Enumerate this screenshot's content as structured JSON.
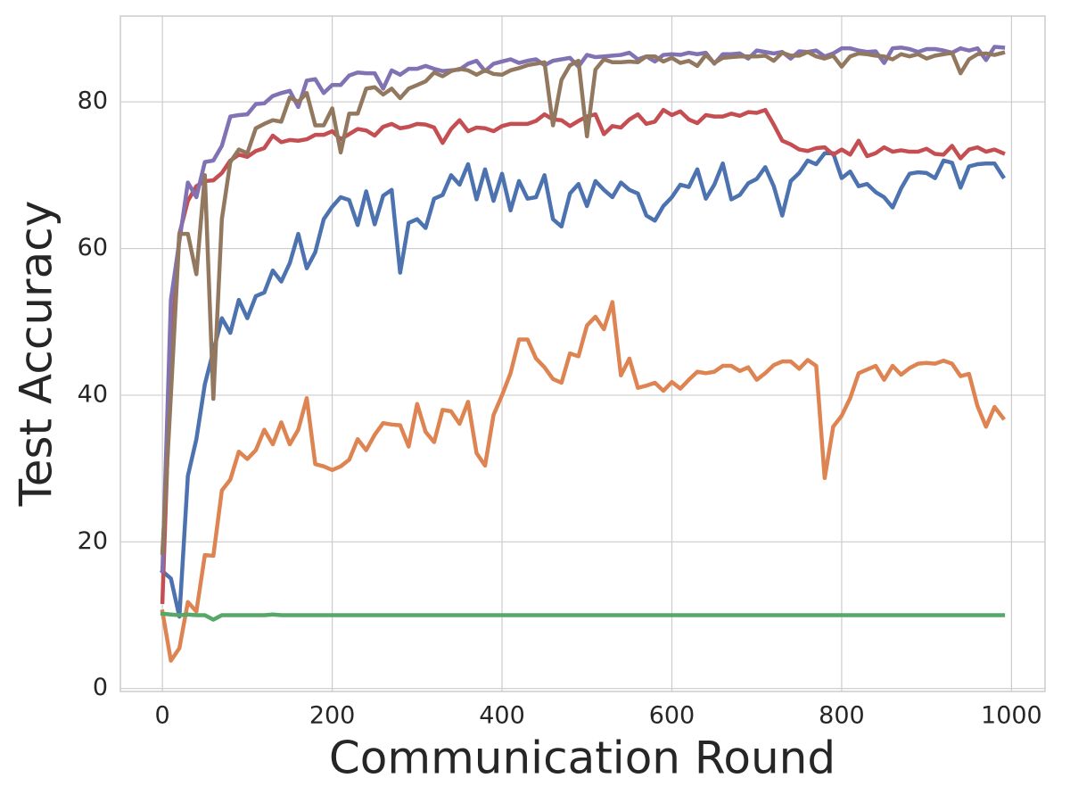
{
  "chart_data": {
    "type": "line",
    "xlabel": "Communication Round",
    "ylabel": "Test Accuracy",
    "x": [
      0,
      10,
      20,
      30,
      40,
      50,
      60,
      70,
      80,
      90,
      100,
      110,
      120,
      130,
      140,
      150,
      160,
      170,
      180,
      190,
      200,
      210,
      220,
      230,
      240,
      250,
      260,
      270,
      280,
      290,
      300,
      310,
      320,
      330,
      340,
      350,
      360,
      370,
      380,
      390,
      400,
      410,
      420,
      430,
      440,
      450,
      460,
      470,
      480,
      490,
      500,
      510,
      520,
      530,
      540,
      550,
      560,
      570,
      580,
      590,
      600,
      610,
      620,
      630,
      640,
      650,
      660,
      670,
      680,
      690,
      700,
      710,
      720,
      730,
      740,
      750,
      760,
      770,
      780,
      790,
      800,
      810,
      820,
      830,
      840,
      850,
      860,
      870,
      880,
      890,
      900,
      910,
      920,
      930,
      940,
      950,
      960,
      970,
      980,
      990
    ],
    "xlim": [
      -49.5,
      1039.5
    ],
    "ylim": [
      -0.4,
      91.7
    ],
    "xticks": [
      0,
      200,
      400,
      600,
      800,
      1000
    ],
    "yticks": [
      0,
      20,
      40,
      60,
      80
    ],
    "grid": true,
    "series": [
      {
        "color": "#4c72b0",
        "values": [
          16,
          15,
          9.8,
          29,
          34,
          41.5,
          46,
          50.5,
          48.5,
          53,
          50.5,
          53.5,
          54,
          57,
          55.5,
          58,
          62,
          57.3,
          59.5,
          64,
          65.7,
          67,
          66.6,
          63.2,
          67.8,
          63.3,
          67.2,
          68,
          56.7,
          63.5,
          64,
          62.8,
          66.8,
          67.3,
          70,
          68.7,
          71.5,
          66.7,
          70.8,
          66.5,
          70.2,
          65.2,
          69.2,
          66.8,
          67,
          70,
          64,
          63,
          67.5,
          68.8,
          65.8,
          69.2,
          68,
          67,
          69,
          68,
          67.5,
          64.5,
          63.8,
          65.8,
          67,
          68.7,
          68.4,
          70.8,
          66.8,
          68.7,
          71.6,
          66.7,
          67.3,
          68.9,
          69.5,
          71.1,
          68.5,
          64.5,
          69.2,
          70.3,
          72,
          71.5,
          73,
          73,
          69.6,
          70.5,
          68.5,
          68.8,
          67.7,
          67,
          65.6,
          68.2,
          70.2,
          70.4,
          70.3,
          69.6,
          72,
          71.7,
          68.3,
          71.2,
          71.5,
          71.6,
          71.6,
          69.8
        ]
      },
      {
        "color": "#dd8452",
        "values": [
          10.5,
          3.8,
          5.5,
          11.8,
          10.5,
          18.2,
          18.1,
          27,
          28.5,
          32.3,
          31.3,
          32.5,
          35.3,
          33.3,
          36.3,
          33.3,
          35.3,
          39.6,
          30.6,
          30.3,
          29.8,
          30.3,
          31.2,
          34,
          32.5,
          34.6,
          36.2,
          36,
          35.9,
          33,
          38.8,
          35,
          33.6,
          38,
          37.8,
          36.1,
          39.1,
          32.1,
          30.4,
          37.3,
          40,
          43,
          47.6,
          47.6,
          45,
          43.8,
          42.2,
          41.7,
          45.7,
          45.3,
          49.5,
          50.7,
          49,
          52.7,
          42.7,
          45,
          41,
          41.3,
          41.7,
          40.6,
          41.8,
          40.9,
          42.1,
          43.2,
          43,
          43.2,
          44,
          44,
          43.3,
          43.8,
          42.1,
          43,
          44.1,
          44.6,
          44.6,
          43.6,
          44.8,
          44,
          28.7,
          35.7,
          37.2,
          39.6,
          43,
          43.5,
          44,
          42.1,
          44,
          42.8,
          43.7,
          44.3,
          44.4,
          44.3,
          44.7,
          44.3,
          42.6,
          42.9,
          38.5,
          35.7,
          38.4,
          36.9
        ]
      },
      {
        "color": "#55a868",
        "values": [
          10.2,
          10.1,
          10,
          10.1,
          10,
          10,
          9.4,
          10,
          10,
          10,
          10,
          10,
          10,
          10.1,
          10,
          10,
          10,
          10,
          10,
          10,
          10,
          10,
          10,
          10,
          10,
          10,
          10,
          10,
          10,
          10,
          10,
          10,
          10,
          10,
          10,
          10,
          10,
          10,
          10,
          10,
          10,
          10,
          10,
          10,
          10,
          10,
          10,
          10,
          10,
          10,
          10,
          10,
          10,
          10,
          10,
          10,
          10,
          10,
          10,
          10,
          10,
          10,
          10,
          10,
          10,
          10,
          10,
          10,
          10,
          10,
          10,
          10,
          10,
          10,
          10,
          10,
          10,
          10,
          10,
          10,
          10,
          10,
          10,
          10,
          10,
          10,
          10,
          10,
          10,
          10,
          10,
          10,
          10,
          10,
          10,
          10,
          10,
          10,
          10,
          10
        ]
      },
      {
        "color": "#c44e52",
        "values": [
          11.8,
          45,
          62,
          66.5,
          68.5,
          69.2,
          69.3,
          70.3,
          72,
          72.8,
          72.5,
          73.3,
          73.7,
          75.4,
          74.5,
          74.8,
          74.7,
          74.9,
          75.5,
          75.5,
          76,
          74.9,
          75.6,
          76.3,
          76.1,
          75.4,
          76.6,
          77,
          76.4,
          76.6,
          77,
          76.9,
          76.5,
          74.4,
          76.3,
          77.5,
          76,
          76.5,
          76.4,
          76,
          76.7,
          77,
          77,
          77,
          77.4,
          78.3,
          77.6,
          77.5,
          76.7,
          77.4,
          78,
          78.3,
          75.6,
          76.7,
          76.5,
          77.6,
          78.3,
          77,
          77.3,
          78.9,
          78.2,
          78.7,
          77.6,
          77.1,
          78.2,
          78,
          78,
          78.4,
          78.1,
          78.6,
          78.5,
          78.9,
          76.9,
          74.7,
          74.2,
          73.5,
          73.3,
          73.7,
          73.8,
          72.8,
          73.5,
          72.8,
          74.7,
          72.6,
          73,
          73.8,
          73.2,
          73.4,
          73.2,
          73.2,
          73.6,
          72.9,
          72.8,
          74,
          72.3,
          73.5,
          73.8,
          73.2,
          73.5,
          73
        ]
      },
      {
        "color": "#8172b3",
        "values": [
          16,
          53,
          61,
          69,
          67,
          71.8,
          72,
          74,
          78,
          78.2,
          78.3,
          79.7,
          79.8,
          80.8,
          81.2,
          81.5,
          79.3,
          82.9,
          83.1,
          81.2,
          82.3,
          82.3,
          83.6,
          84,
          83.9,
          83.9,
          81.8,
          84.3,
          83.7,
          84.5,
          84.5,
          84.9,
          84.5,
          84.2,
          84.3,
          84.4,
          85.2,
          85.6,
          84.2,
          85.2,
          85.5,
          85.8,
          85.3,
          85.6,
          85.8,
          85,
          85.6,
          85.8,
          86,
          84.8,
          86.4,
          86.1,
          86.2,
          86.3,
          86.4,
          86.7,
          85.8,
          86.2,
          85.5,
          86.4,
          86.5,
          86.4,
          86.7,
          86.5,
          86.7,
          85.2,
          86.5,
          86.5,
          86.6,
          85.9,
          87,
          86.8,
          86.6,
          86.8,
          85.9,
          86.9,
          86.8,
          87,
          86.2,
          86.6,
          87.3,
          87.3,
          87,
          86.8,
          86.9,
          85.3,
          87.3,
          87.4,
          87.2,
          86.8,
          87.2,
          87.2,
          87,
          86.7,
          87.3,
          87,
          87.3,
          85.7,
          87.5,
          87.4
        ]
      },
      {
        "color": "#937860",
        "values": [
          18.5,
          40,
          62,
          62,
          56.5,
          70,
          39.5,
          64,
          71.8,
          73.5,
          73,
          76.4,
          77,
          77.5,
          77.3,
          80.6,
          80,
          81.2,
          76.8,
          76.8,
          79.1,
          73.1,
          78.4,
          78.4,
          81.8,
          82,
          81,
          81.8,
          80.5,
          81.8,
          82.3,
          82.8,
          84,
          83.5,
          84.2,
          84.5,
          84.3,
          83.7,
          84.3,
          83.8,
          83.7,
          84.3,
          84.6,
          85,
          85.2,
          85.4,
          76.8,
          83,
          85,
          85.6,
          75.3,
          84.4,
          85.8,
          85.4,
          85.4,
          85.5,
          85.4,
          86.2,
          86.2,
          85.5,
          86,
          85.3,
          85.6,
          84.9,
          86.4,
          85.3,
          86,
          86.1,
          86.2,
          86.2,
          86.2,
          86.3,
          85.6,
          86.7,
          86.3,
          86.3,
          86.8,
          86.2,
          85.9,
          86.3,
          84.8,
          86.2,
          86.6,
          86.5,
          86.3,
          86.2,
          85.8,
          86.5,
          86.2,
          86.5,
          85.9,
          86.3,
          86.5,
          86.7,
          83.9,
          85.8,
          86.5,
          86.6,
          86.4,
          86.7
        ]
      }
    ]
  }
}
